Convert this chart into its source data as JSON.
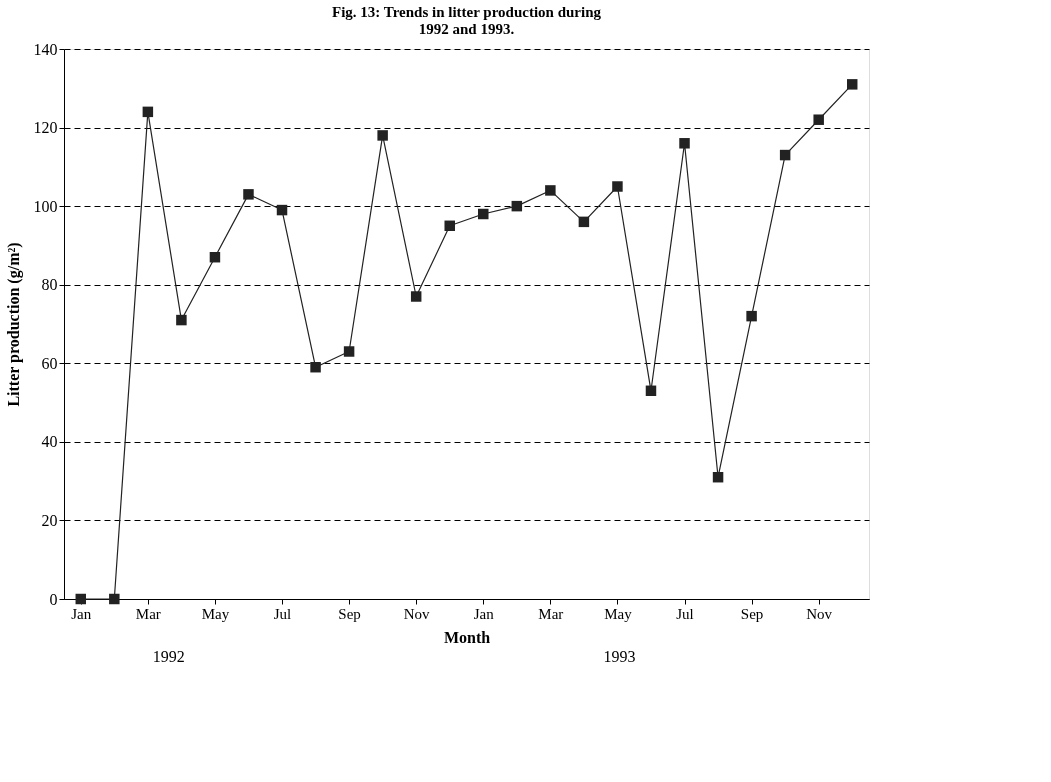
{
  "chart_data": {
    "type": "line",
    "title": "Fig. 13: Trends in litter production during 1992 and 1993.",
    "xlabel": "Month",
    "ylabel": "Litter production (g/m²)",
    "categories": [
      "Jan",
      null,
      "Mar",
      null,
      "May",
      null,
      "Jul",
      null,
      "Sep",
      null,
      "Nov",
      null,
      "Jan",
      null,
      "Mar",
      null,
      "May",
      null,
      "Jul",
      null,
      "Sep",
      null,
      "Nov",
      null
    ],
    "series": [
      {
        "color": "#222222",
        "values": [
          0,
          0,
          124,
          71,
          87,
          103,
          99,
          59,
          63,
          118,
          77,
          95,
          98,
          100,
          104,
          96,
          105,
          53,
          116,
          31,
          72,
          113,
          122,
          131
        ]
      }
    ],
    "ylim": [
      0,
      140
    ],
    "yticks": [
      0,
      20,
      40,
      60,
      80,
      100,
      120,
      140
    ],
    "grid": "y",
    "marker": "square",
    "line_style": "solid",
    "annotations": [
      "1992",
      "1993"
    ]
  }
}
